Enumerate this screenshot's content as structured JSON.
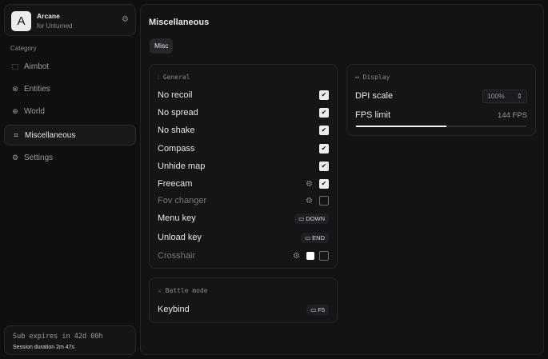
{
  "brand": {
    "name": "Arcane",
    "subtitle": "for Unturned",
    "logo_letter": "A"
  },
  "sidebar": {
    "category_label": "Category",
    "items": [
      {
        "label": "Aimbot",
        "icon": "crosshair-icon",
        "glyph": "⬚"
      },
      {
        "label": "Entities",
        "icon": "entities-icon",
        "glyph": "⊗"
      },
      {
        "label": "World",
        "icon": "globe-icon",
        "glyph": "⊕"
      },
      {
        "label": "Miscellaneous",
        "icon": "grid-icon",
        "glyph": "⌗"
      },
      {
        "label": "Settings",
        "icon": "gear-icon",
        "glyph": "⚙"
      }
    ],
    "active": "Miscellaneous"
  },
  "subscription": {
    "expires": "Sub expires in 42d 00h",
    "session": "Session duration 2m 47s"
  },
  "main": {
    "title": "Miscellaneous",
    "tab": "Misc"
  },
  "general": {
    "title": "General",
    "rows": [
      {
        "label": "No recoil",
        "checked": true
      },
      {
        "label": "No spread",
        "checked": true
      },
      {
        "label": "No shake",
        "checked": true
      },
      {
        "label": "Compass",
        "checked": true
      },
      {
        "label": "Unhide map",
        "checked": true
      },
      {
        "label": "Freecam",
        "checked": true,
        "gear": true
      },
      {
        "label": "Fov changer",
        "checked": false,
        "gear": true
      },
      {
        "label": "Menu key",
        "key": "DOWN"
      },
      {
        "label": "Unload key",
        "key": "END"
      },
      {
        "label": "Crosshair",
        "checked": false,
        "gear": true,
        "color": "#ffffff"
      }
    ]
  },
  "display": {
    "title": "Display",
    "dpi_label": "DPI scale",
    "dpi_value": "100%",
    "fps_label": "FPS limit",
    "fps_value": "144 FPS",
    "fps_fraction": 0.53
  },
  "battle": {
    "title": "Battle mode",
    "keybind_label": "Keybind",
    "keybind_value": "F5"
  }
}
